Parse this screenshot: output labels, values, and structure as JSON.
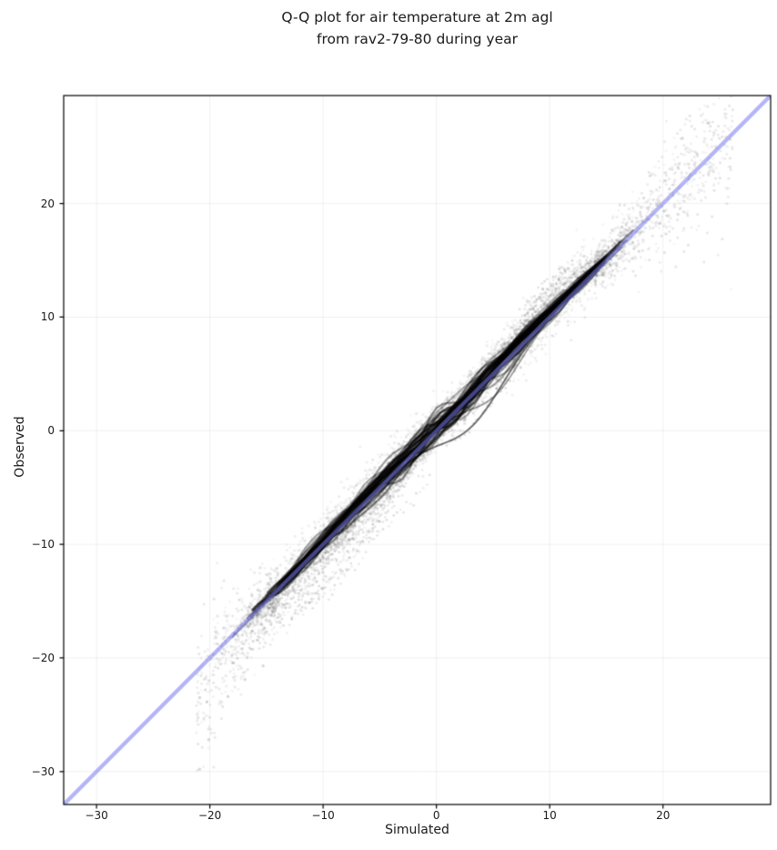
{
  "page": {
    "background": "#ffffff"
  },
  "chart_data": {
    "type": "scatter",
    "chart_kind": "qq-plot",
    "title_lines": [
      "Q-Q plot for air temperature at 2m agl",
      "from rav2-79-80 during year"
    ],
    "xlabel": "Simulated",
    "ylabel": "Observed",
    "xlim": [
      -32.9,
      29.5
    ],
    "ylim": [
      -32.9,
      29.5
    ],
    "xticks": {
      "values": [
        -30,
        -20,
        -10,
        0,
        10,
        20
      ],
      "labels": [
        "−30",
        "−20",
        "−10",
        "0",
        "10",
        "20"
      ]
    },
    "yticks": {
      "values": [
        -30,
        -20,
        -10,
        0,
        10,
        20
      ],
      "labels": [
        "−30",
        "−20",
        "−10",
        "0",
        "10",
        "20"
      ]
    },
    "grid": {
      "show": true,
      "color": "rgba(0,0,0,0.065)"
    },
    "frame_color": "#000000",
    "tick_color": "#262626",
    "reference_line": {
      "kind": "identity y = x",
      "color": "#7676f0",
      "alpha": 0.55,
      "width": 4.3
    },
    "points": {
      "color": "#000000",
      "radius": 1.65,
      "seed": 20790,
      "description": "Dense cloud of station quantile strands hugging the identity line; observed colder than simulated for negative temps (strands fan below line around x=-17..-1), observed warmer around x=5..15 (fray above line), sparse tails to (-21,-30) and (26,25).",
      "gen": {
        "band_bias": {
          "offset": -0.1,
          "bumps": [
            [
              0.5,
              -4,
              8
            ],
            [
              0.4,
              11,
              4
            ]
          ]
        },
        "core": {
          "strands": 46,
          "x_start": -13.8,
          "x_end": 14.3,
          "alpha": 0.42,
          "line_width": 2.2,
          "wiggle": 0.8
        },
        "fan_below": {
          "strands": 22,
          "x_start": -16.5,
          "x_end": -0.5,
          "center": -8.5,
          "center_sd": 2.5,
          "width_min": 2.5,
          "width_max": 5.0,
          "amp_min": 0.8,
          "amp_max": 5.2,
          "alpha": 0.09
        },
        "fan_above": {
          "strands": 14,
          "x_start": 3.0,
          "x_end": 15.5,
          "center": 10.2,
          "center_sd": 1.6,
          "width_min": 2.2,
          "width_max": 4.0,
          "amp_min": 0.5,
          "amp_max": 3.6,
          "alpha": 0.09
        },
        "s_strands": [
          {
            "x0": -3.5,
            "x1": 10.0,
            "center": 3.2,
            "width": 2.7,
            "amp": -2.75,
            "alpha": 0.55,
            "line_width": 2.0
          },
          {
            "x0": -1.5,
            "x1": 10.5,
            "center": 5.3,
            "width": 2.1,
            "amp": -2.1,
            "alpha": 0.38,
            "line_width": 1.8
          }
        ],
        "halo": {
          "n": 3200,
          "x_sd": 8.5,
          "x_min": -20.0,
          "x_max": 16.5,
          "spread": 0.95,
          "alpha": 0.055
        },
        "upper_tail": {
          "n": 780,
          "x_from": 14.0,
          "x_to": 26.2,
          "skew": 1.5,
          "spread_base": 0.7,
          "spread_growth": 0.27,
          "alpha": 0.07
        },
        "lower_tail": {
          "n": 430,
          "x_from": -14.0,
          "x_to": -21.3,
          "skew": 1.6,
          "spread_base": 1.0,
          "spread_growth": 2.4,
          "below_bias": 2.6,
          "alpha": 0.07
        },
        "outliers": [
          [
            -20.9,
            -29.8
          ],
          [
            -20.1,
            -27.2
          ],
          [
            -20.9,
            -23.5
          ],
          [
            -18.4,
            -23.4
          ],
          [
            -16.9,
            -21.9
          ],
          [
            -15.3,
            -20.7
          ]
        ]
      }
    }
  }
}
